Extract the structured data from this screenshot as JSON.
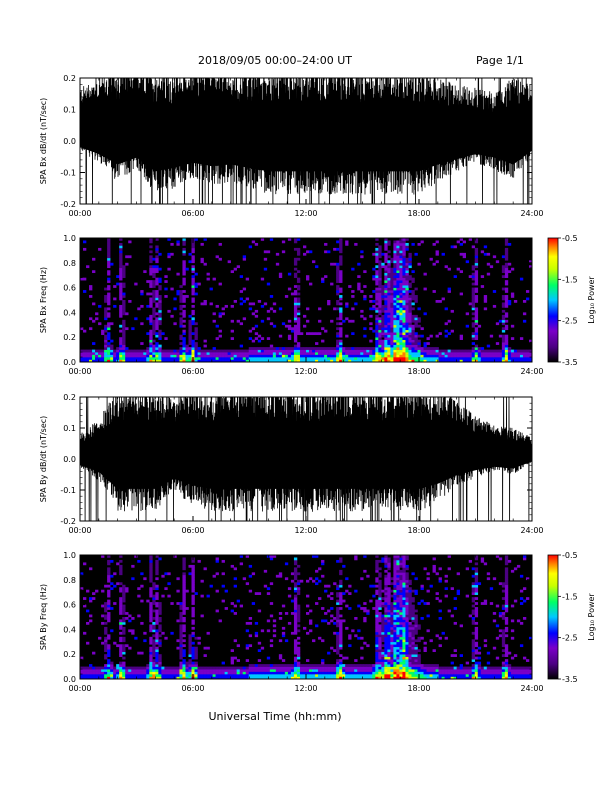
{
  "header": {
    "title": "2018/09/05  00:00–24:00 UT",
    "page": "Page 1/1"
  },
  "xlabel": "Universal Time (hh:mm)",
  "colors": {
    "trace": "#000000",
    "spectrogram_background": "#000000",
    "colormap": [
      "#000000",
      "#4b0082",
      "#7a00c8",
      "#0000ff",
      "#00c8ff",
      "#00ff66",
      "#c8ff00",
      "#ffff00",
      "#ff8000",
      "#ff0000"
    ]
  },
  "chart_data": [
    {
      "type": "line",
      "title": "",
      "ylabel": "SPA Bx dB/dt (nT/sec)",
      "xlim": [
        "00:00",
        "24:00"
      ],
      "ylim": [
        -0.2,
        0.2
      ],
      "x_ticks": [
        "00:00",
        "06:00",
        "12:00",
        "18:00",
        "24:00"
      ],
      "y_ticks": [
        "-0.2",
        "-0.1",
        "0.0",
        "0.1",
        "0.2"
      ],
      "y_tick_values": [
        -0.2,
        -0.1,
        0.0,
        0.1,
        0.2
      ],
      "series": [
        {
          "x_hours": [
            0,
            1,
            2,
            3,
            4,
            5,
            6,
            7,
            8,
            9,
            10,
            11,
            12,
            13,
            14,
            15,
            16,
            17,
            18,
            19,
            20,
            21,
            22,
            23,
            24
          ],
          "envelope_upper": [
            0.14,
            0.17,
            0.2,
            0.2,
            0.2,
            0.18,
            0.2,
            0.2,
            0.18,
            0.2,
            0.2,
            0.2,
            0.2,
            0.2,
            0.2,
            0.2,
            0.2,
            0.2,
            0.2,
            0.17,
            0.15,
            0.14,
            0.13,
            0.17,
            0.15
          ],
          "envelope_lower": [
            -0.06,
            -0.1,
            -0.16,
            -0.12,
            -0.2,
            -0.18,
            -0.15,
            -0.17,
            -0.16,
            -0.18,
            -0.2,
            -0.2,
            -0.2,
            -0.2,
            -0.2,
            -0.2,
            -0.2,
            -0.2,
            -0.2,
            -0.16,
            -0.13,
            -0.1,
            -0.12,
            -0.16,
            -0.08
          ]
        }
      ]
    },
    {
      "type": "heatmap",
      "title": "",
      "ylabel": "SPA Bx Freq (Hz)",
      "xlim": [
        "00:00",
        "24:00"
      ],
      "ylim": [
        0.0,
        1.0
      ],
      "x_ticks": [
        "00:00",
        "06:00",
        "12:00",
        "18:00",
        "24:00"
      ],
      "y_ticks": [
        "0.0",
        "0.2",
        "0.4",
        "0.6",
        "0.8",
        "1.0"
      ],
      "y_tick_values": [
        0.0,
        0.2,
        0.4,
        0.6,
        0.8,
        1.0
      ],
      "colorbar": {
        "label": "Log₁₀ Power",
        "range": [
          -3.5,
          -0.5
        ],
        "ticks": [
          "-0.5",
          "-1.5",
          "-2.5",
          "-3.5"
        ],
        "tick_values": [
          -0.5,
          -1.5,
          -2.5,
          -3.5
        ]
      },
      "activity_hours": [
        1.5,
        2.2,
        3.8,
        4.1,
        5.5,
        6.0,
        11.5,
        13.8,
        15.8,
        16.3,
        16.8,
        17.2,
        21.0,
        22.6
      ],
      "broadband_peak_hours": [
        15.5,
        18.5
      ]
    },
    {
      "type": "line",
      "title": "",
      "ylabel": "SPA By dB/dt (nT/sec)",
      "xlim": [
        "00:00",
        "24:00"
      ],
      "ylim": [
        -0.2,
        0.2
      ],
      "x_ticks": [
        "00:00",
        "06:00",
        "12:00",
        "18:00",
        "24:00"
      ],
      "y_ticks": [
        "-0.2",
        "-0.1",
        "0.0",
        "0.1",
        "0.2"
      ],
      "y_tick_values": [
        -0.2,
        -0.1,
        0.0,
        0.1,
        0.2
      ],
      "series": [
        {
          "x_hours": [
            0,
            1,
            2,
            3,
            4,
            5,
            6,
            7,
            8,
            9,
            10,
            11,
            12,
            13,
            14,
            15,
            16,
            17,
            18,
            19,
            20,
            21,
            22,
            23,
            24
          ],
          "envelope_upper": [
            0.05,
            0.1,
            0.2,
            0.2,
            0.2,
            0.16,
            0.2,
            0.2,
            0.2,
            0.2,
            0.2,
            0.2,
            0.2,
            0.2,
            0.2,
            0.2,
            0.2,
            0.2,
            0.2,
            0.2,
            0.16,
            0.11,
            0.08,
            0.07,
            0.04
          ],
          "envelope_lower": [
            -0.06,
            -0.1,
            -0.2,
            -0.2,
            -0.2,
            -0.14,
            -0.18,
            -0.2,
            -0.2,
            -0.2,
            -0.2,
            -0.2,
            -0.2,
            -0.2,
            -0.2,
            -0.2,
            -0.2,
            -0.2,
            -0.2,
            -0.17,
            -0.12,
            -0.09,
            -0.07,
            -0.08,
            -0.04
          ]
        }
      ]
    },
    {
      "type": "heatmap",
      "title": "",
      "ylabel": "SPA By Freq (Hz)",
      "xlim": [
        "00:00",
        "24:00"
      ],
      "ylim": [
        0.0,
        1.0
      ],
      "x_ticks": [
        "00:00",
        "06:00",
        "12:00",
        "18:00",
        "24:00"
      ],
      "y_ticks": [
        "0.0",
        "0.2",
        "0.4",
        "0.6",
        "0.8",
        "1.0"
      ],
      "y_tick_values": [
        0.0,
        0.2,
        0.4,
        0.6,
        0.8,
        1.0
      ],
      "colorbar": {
        "label": "Log₁₀ Power",
        "range": [
          -3.5,
          -0.5
        ],
        "ticks": [
          "-0.5",
          "-1.5",
          "-2.5",
          "-3.5"
        ],
        "tick_values": [
          -0.5,
          -1.5,
          -2.5,
          -3.5
        ]
      },
      "activity_hours": [
        1.5,
        2.2,
        3.8,
        4.1,
        5.5,
        6.0,
        11.5,
        13.8,
        15.8,
        16.3,
        16.8,
        17.2,
        21.0,
        22.6
      ],
      "broadband_peak_hours": [
        15.5,
        18.5
      ]
    }
  ]
}
